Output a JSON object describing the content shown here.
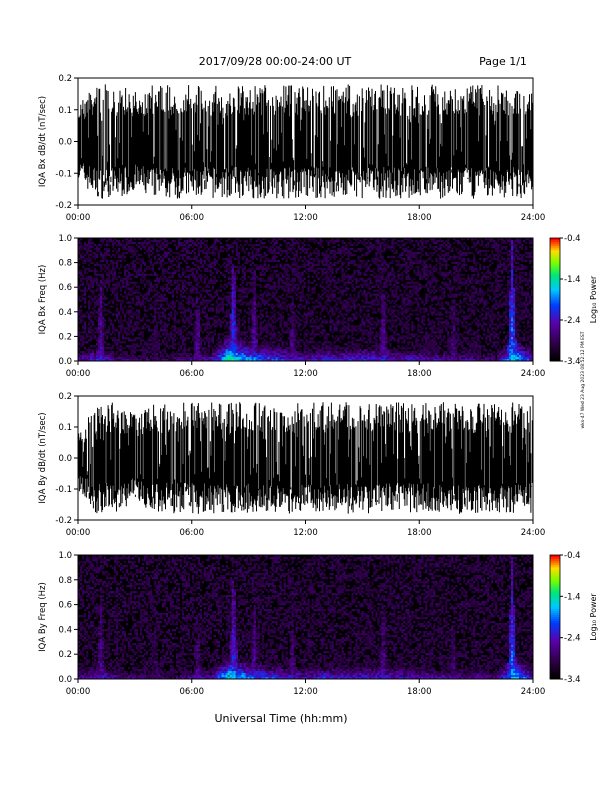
{
  "header": {
    "title": "2017/09/28  00:00-24:00 UT",
    "page": "Page 1/1"
  },
  "stamp": "wks-47 Wed 23 Aug 2023 08:52:12 PM EST",
  "colors": {
    "background": "#ffffff",
    "trace": "#000000",
    "spectrogram_base": "#000000"
  },
  "chart_data": [
    {
      "type": "line",
      "title": "",
      "ylabel": "IQA Bx dB/dt (nT/sec)",
      "xlabel": "",
      "xlim": [
        "00:00",
        "24:00"
      ],
      "ylim": [
        -0.2,
        0.2
      ],
      "x_ticks": [
        "00:00",
        "06:00",
        "12:00",
        "18:00",
        "24:00"
      ],
      "y_ticks": [
        "0.2",
        "0.1",
        "0.0",
        "-0.1",
        "-0.2"
      ],
      "series": [
        {
          "x_hours": [
            0,
            1,
            2,
            3,
            4,
            5,
            6,
            7,
            8,
            9,
            10,
            11,
            12,
            13,
            14,
            15,
            16,
            17,
            18,
            19,
            20,
            21,
            22,
            23,
            24
          ],
          "envelope_max": [
            0.14,
            0.2,
            0.2,
            0.18,
            0.2,
            0.2,
            0.2,
            0.2,
            0.2,
            0.2,
            0.2,
            0.2,
            0.2,
            0.2,
            0.2,
            0.2,
            0.2,
            0.2,
            0.2,
            0.2,
            0.2,
            0.2,
            0.2,
            0.2,
            0.2
          ],
          "envelope_min": [
            -0.14,
            -0.2,
            -0.2,
            -0.18,
            -0.2,
            -0.2,
            -0.2,
            -0.2,
            -0.2,
            -0.2,
            -0.2,
            -0.2,
            -0.2,
            -0.2,
            -0.2,
            -0.2,
            -0.2,
            -0.2,
            -0.2,
            -0.2,
            -0.2,
            -0.2,
            -0.2,
            -0.2,
            -0.2
          ]
        }
      ]
    },
    {
      "type": "heatmap",
      "title": "",
      "ylabel": "IQA Bx Freq (Hz)",
      "xlabel": "",
      "xlim": [
        "00:00",
        "24:00"
      ],
      "ylim": [
        0,
        1.0
      ],
      "x_ticks": [
        "00:00",
        "06:00",
        "12:00",
        "18:00",
        "24:00"
      ],
      "y_ticks": [
        "1.0",
        "0.8",
        "0.6",
        "0.4",
        "0.2",
        "0.0"
      ],
      "colorbar": {
        "label": "Log₁₀ Power",
        "ticks": [
          "-0.4",
          "-1.4",
          "-2.4",
          "-3.4"
        ],
        "range": [
          -3.4,
          -0.4
        ]
      },
      "x_hours": [
        0,
        1,
        2,
        3,
        4,
        5,
        6,
        7,
        8,
        9,
        10,
        11,
        12,
        13,
        14,
        15,
        16,
        17,
        18,
        19,
        20,
        21,
        22,
        23,
        24
      ],
      "low_freq_power": [
        -2.6,
        -2.2,
        -2.6,
        -2.8,
        -2.8,
        -2.8,
        -2.6,
        -2.5,
        -1.2,
        -1.8,
        -2.0,
        -2.2,
        -2.4,
        -2.2,
        -2.3,
        -2.2,
        -2.2,
        -2.4,
        -2.4,
        -2.5,
        -2.6,
        -2.6,
        -2.8,
        -1.4,
        -2.4
      ],
      "bursts": [
        {
          "hour": 1.2,
          "top_hz": 0.7,
          "power": -2.4
        },
        {
          "hour": 4.1,
          "top_hz": 0.9,
          "power": -2.8
        },
        {
          "hour": 6.3,
          "top_hz": 0.6,
          "power": -2.5
        },
        {
          "hour": 8.2,
          "top_hz": 0.95,
          "power": -2.0
        },
        {
          "hour": 9.3,
          "top_hz": 0.8,
          "power": -2.4
        },
        {
          "hour": 11.3,
          "top_hz": 0.7,
          "power": -2.6
        },
        {
          "hour": 16.1,
          "top_hz": 0.7,
          "power": -2.4
        },
        {
          "hour": 19.8,
          "top_hz": 0.6,
          "power": -2.6
        },
        {
          "hour": 22.9,
          "top_hz": 1.0,
          "power": -1.8
        }
      ]
    },
    {
      "type": "line",
      "title": "",
      "ylabel": "IQA By dB/dt (nT/sec)",
      "xlabel": "",
      "xlim": [
        "00:00",
        "24:00"
      ],
      "ylim": [
        -0.2,
        0.2
      ],
      "x_ticks": [
        "00:00",
        "06:00",
        "12:00",
        "18:00",
        "24:00"
      ],
      "y_ticks": [
        "0.2",
        "0.1",
        "0.0",
        "-0.1",
        "-0.2"
      ],
      "series": [
        {
          "x_hours": [
            0,
            1,
            2,
            3,
            4,
            5,
            6,
            7,
            8,
            9,
            10,
            11,
            12,
            13,
            14,
            15,
            16,
            17,
            18,
            19,
            20,
            21,
            22,
            23,
            24
          ],
          "envelope_max": [
            0.12,
            0.2,
            0.2,
            0.16,
            0.2,
            0.2,
            0.2,
            0.2,
            0.2,
            0.2,
            0.2,
            0.2,
            0.2,
            0.2,
            0.2,
            0.2,
            0.2,
            0.2,
            0.2,
            0.2,
            0.2,
            0.2,
            0.2,
            0.2,
            0.2
          ],
          "envelope_min": [
            -0.12,
            -0.2,
            -0.2,
            -0.16,
            -0.2,
            -0.2,
            -0.2,
            -0.2,
            -0.2,
            -0.2,
            -0.2,
            -0.2,
            -0.2,
            -0.2,
            -0.2,
            -0.2,
            -0.2,
            -0.2,
            -0.2,
            -0.2,
            -0.2,
            -0.2,
            -0.2,
            -0.2,
            -0.2
          ]
        }
      ]
    },
    {
      "type": "heatmap",
      "title": "",
      "ylabel": "IQA By Freq (Hz)",
      "xlabel": "Universal Time (hh:mm)",
      "xlim": [
        "00:00",
        "24:00"
      ],
      "ylim": [
        0,
        1.0
      ],
      "x_ticks": [
        "00:00",
        "06:00",
        "12:00",
        "18:00",
        "24:00"
      ],
      "y_ticks": [
        "1.0",
        "0.8",
        "0.6",
        "0.4",
        "0.2",
        "0.0"
      ],
      "colorbar": {
        "label": "Log₁₀ Power",
        "ticks": [
          "-0.4",
          "-1.4",
          "-2.4",
          "-3.4"
        ],
        "range": [
          -3.4,
          -0.4
        ]
      },
      "x_hours": [
        0,
        1,
        2,
        3,
        4,
        5,
        6,
        7,
        8,
        9,
        10,
        11,
        12,
        13,
        14,
        15,
        16,
        17,
        18,
        19,
        20,
        21,
        22,
        23,
        24
      ],
      "low_freq_power": [
        -2.6,
        -2.3,
        -2.6,
        -2.8,
        -2.8,
        -2.8,
        -2.6,
        -2.5,
        -1.4,
        -1.9,
        -2.1,
        -2.3,
        -2.4,
        -2.2,
        -2.3,
        -2.3,
        -2.3,
        -2.4,
        -2.4,
        -2.5,
        -2.6,
        -2.6,
        -2.8,
        -1.5,
        -2.4
      ],
      "bursts": [
        {
          "hour": 1.2,
          "top_hz": 0.7,
          "power": -2.5
        },
        {
          "hour": 4.1,
          "top_hz": 0.9,
          "power": -2.8
        },
        {
          "hour": 6.3,
          "top_hz": 0.6,
          "power": -2.6
        },
        {
          "hour": 8.2,
          "top_hz": 0.95,
          "power": -2.1
        },
        {
          "hour": 9.3,
          "top_hz": 0.8,
          "power": -2.5
        },
        {
          "hour": 11.3,
          "top_hz": 0.7,
          "power": -2.6
        },
        {
          "hour": 16.1,
          "top_hz": 0.7,
          "power": -2.5
        },
        {
          "hour": 19.8,
          "top_hz": 0.6,
          "power": -2.6
        },
        {
          "hour": 22.9,
          "top_hz": 1.0,
          "power": -1.9
        }
      ]
    }
  ]
}
